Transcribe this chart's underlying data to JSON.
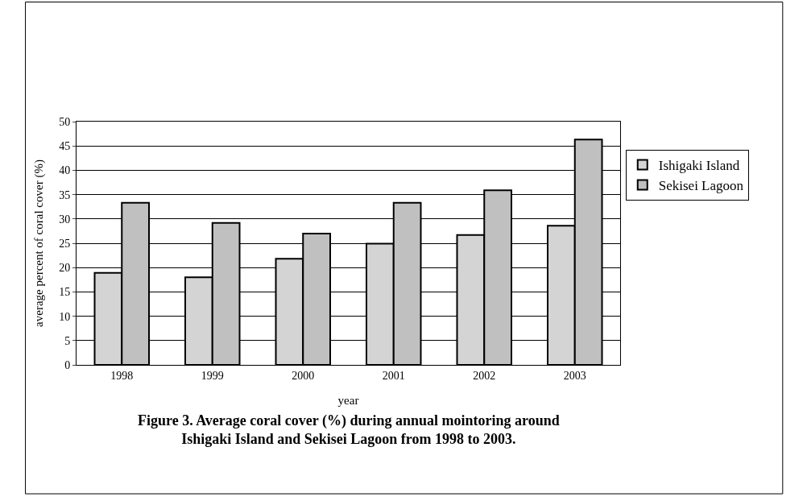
{
  "chart_data": {
    "type": "bar",
    "title": "Figure 3. Average coral cover (%) during annual mointoring around\nIshigaki Island and Sekisei Lagoon from 1998 to 2003.",
    "xlabel": "year",
    "ylabel": "average percent of coral cover (%)",
    "categories": [
      "1998",
      "1999",
      "2000",
      "2001",
      "2002",
      "2003"
    ],
    "series": [
      {
        "name": "Ishigaki Island",
        "color": "#d4d4d4",
        "values": [
          18.9,
          18.0,
          21.8,
          24.9,
          26.7,
          28.6
        ]
      },
      {
        "name": "Sekisei Lagoon",
        "color": "#c0c0c0",
        "values": [
          33.3,
          29.2,
          27.0,
          33.3,
          35.9,
          46.3
        ]
      }
    ],
    "ylim": [
      0,
      50
    ],
    "yticks": [
      0,
      5,
      10,
      15,
      20,
      25,
      30,
      35,
      40,
      45,
      50
    ],
    "grid": "y",
    "legend": "right"
  }
}
